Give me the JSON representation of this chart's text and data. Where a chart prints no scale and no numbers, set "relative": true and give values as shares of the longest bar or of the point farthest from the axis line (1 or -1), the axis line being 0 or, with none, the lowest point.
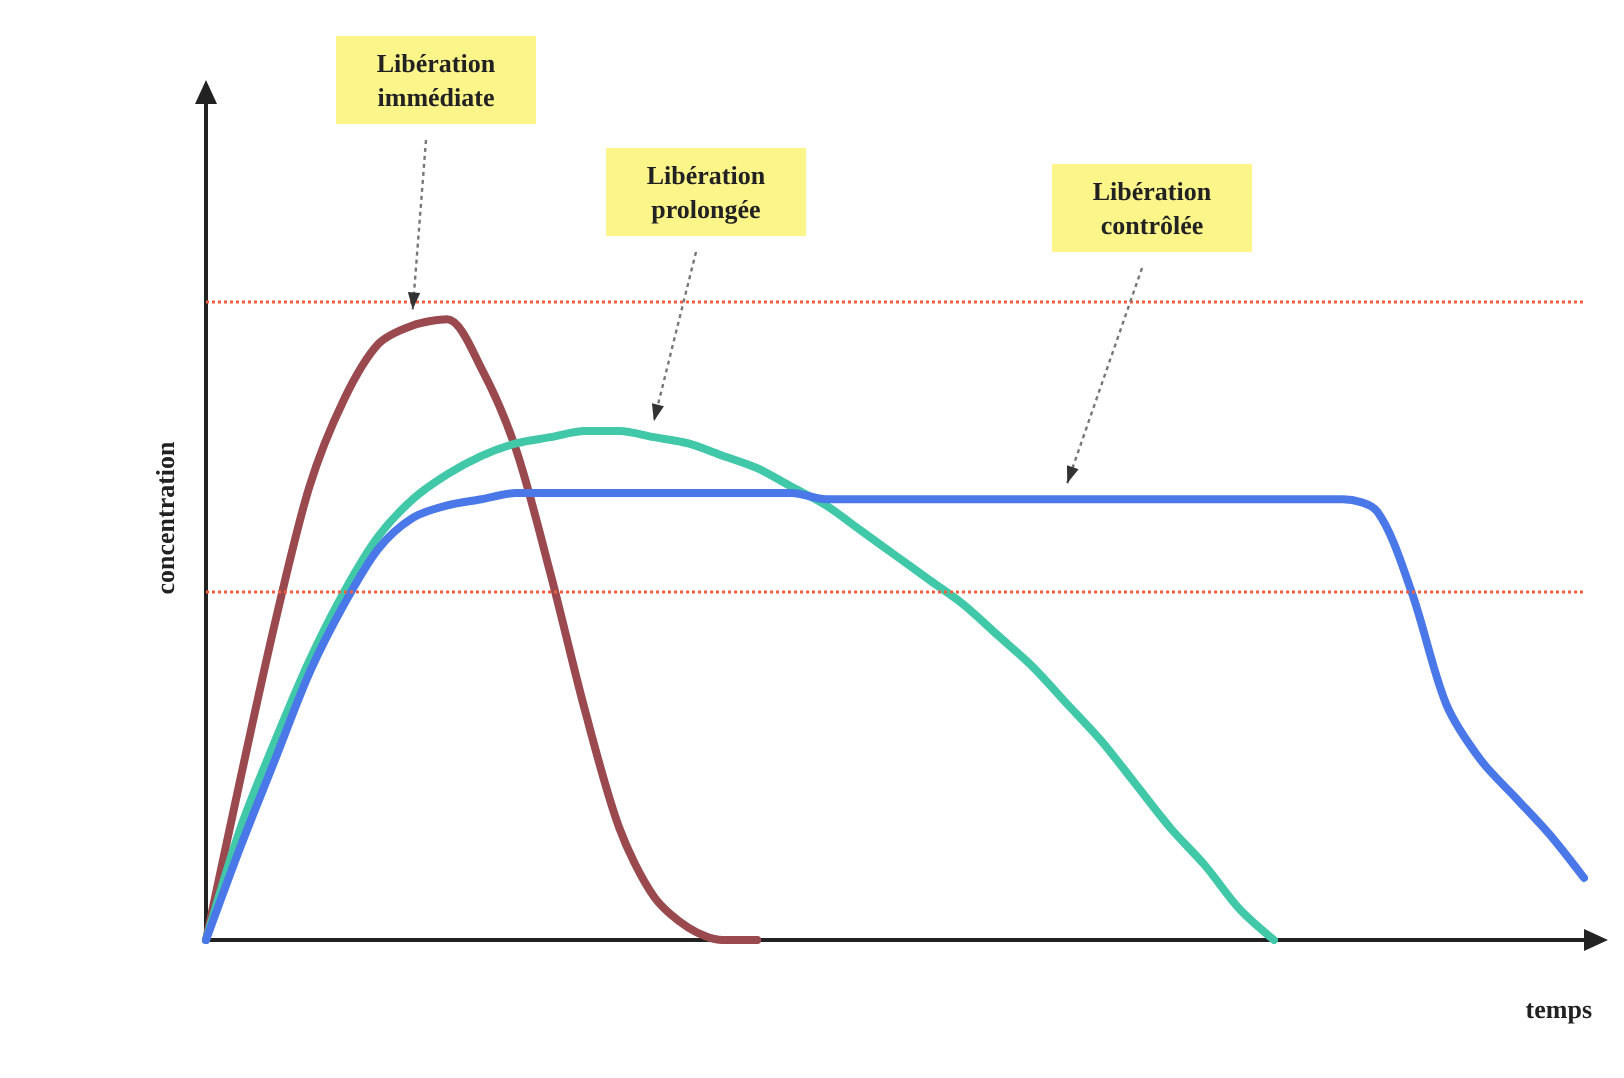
{
  "chart_data": {
    "type": "line",
    "relative": true,
    "xlabel": "temps",
    "ylabel": "concentration",
    "categories": [
      null,
      null,
      null,
      null,
      null,
      null,
      null,
      null,
      null,
      null,
      null,
      null,
      null,
      null,
      null,
      null,
      null,
      null,
      null,
      null,
      null,
      null,
      null,
      null,
      null,
      null,
      null,
      null,
      null,
      null,
      null,
      null,
      null,
      null,
      null,
      null,
      null,
      null,
      null,
      null,
      null
    ],
    "series": [
      {
        "name": "Libération immédiate",
        "color": "#9a4a4e",
        "values": [
          0,
          0.26,
          0.51,
          0.73,
          0.87,
          0.96,
          0.99,
          1,
          0.92,
          0.79,
          0.59,
          0.37,
          0.18,
          0.07,
          0.02,
          0,
          0,
          null,
          null,
          null,
          null,
          null,
          null,
          null,
          null,
          null,
          null,
          null,
          null,
          null,
          null,
          null,
          null,
          null,
          null,
          null,
          null,
          null,
          null,
          null,
          null
        ]
      },
      {
        "name": "Libération prolongée",
        "color": "#40c8a8",
        "values": [
          0,
          0.18,
          0.32,
          0.45,
          0.56,
          0.65,
          0.71,
          0.75,
          0.78,
          0.8,
          0.81,
          0.82,
          0.82,
          0.81,
          0.8,
          0.78,
          0.76,
          0.73,
          0.7,
          0.66,
          0.62,
          0.58,
          0.54,
          0.49,
          0.44,
          0.38,
          0.32,
          0.25,
          0.18,
          0.12,
          0.05,
          0,
          null,
          null,
          null,
          null,
          null,
          null,
          null,
          null,
          null
        ]
      },
      {
        "name": "Libération contrôlée",
        "color": "#4a78e8",
        "values": [
          0,
          0.15,
          0.29,
          0.43,
          0.54,
          0.63,
          0.68,
          0.7,
          0.71,
          0.72,
          0.72,
          0.72,
          0.72,
          0.72,
          0.72,
          0.72,
          0.72,
          0.72,
          0.71,
          0.71,
          0.71,
          0.71,
          0.71,
          0.71,
          0.71,
          0.71,
          0.71,
          0.71,
          0.71,
          0.71,
          0.71,
          0.71,
          0.71,
          0.71,
          0.69,
          0.56,
          0.38,
          0.29,
          0.23,
          0.17,
          0.1
        ]
      }
    ],
    "ref_lines": [
      {
        "axis": "y",
        "value": 1.03,
        "color": "#f06040",
        "line_style": "dotted"
      },
      {
        "axis": "y",
        "value": 0.56,
        "color": "#f06040",
        "line_style": "dotted"
      }
    ],
    "legend": false,
    "grid": false,
    "marker": "none",
    "line_style": "solid"
  }
}
